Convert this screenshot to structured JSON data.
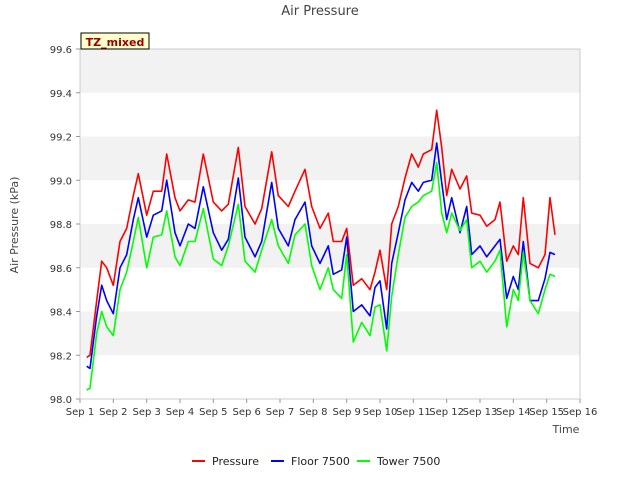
{
  "chart_data": {
    "type": "line",
    "title": "Air Pressure",
    "xlabel": "Time",
    "ylabel": "Air Pressure (kPa)",
    "site_tag": "TZ_mixed",
    "ylim": [
      98.0,
      99.6
    ],
    "yticks": [
      "98.0",
      "98.2",
      "98.4",
      "98.6",
      "98.8",
      "99.0",
      "99.2",
      "99.4",
      "99.6"
    ],
    "xlim": [
      "Sep 1",
      "Sep 16"
    ],
    "xticks": [
      "Sep 1",
      "Sep 2",
      "Sep 3",
      "Sep 4",
      "Sep 5",
      "Sep 6",
      "Sep 7",
      "Sep 8",
      "Sep 9",
      "Sep 10",
      "Sep 11",
      "Sep 12",
      "Sep 13",
      "Sep 14",
      "Sep 15",
      "Sep 16"
    ],
    "grid": "horizontal bands",
    "legend_position": "bottom",
    "series": [
      {
        "name": "Pressure",
        "color": "#ff0000",
        "x": [
          1.2,
          1.3,
          1.5,
          1.65,
          1.8,
          2.0,
          2.2,
          2.4,
          2.6,
          2.75,
          3.0,
          3.2,
          3.45,
          3.6,
          3.85,
          4.0,
          4.25,
          4.45,
          4.7,
          5.0,
          5.25,
          5.45,
          5.75,
          5.95,
          6.25,
          6.45,
          6.75,
          6.95,
          7.25,
          7.45,
          7.75,
          7.95,
          8.2,
          8.45,
          8.6,
          8.85,
          9.0,
          9.2,
          9.45,
          9.7,
          9.85,
          10.0,
          10.2,
          10.35,
          10.55,
          10.75,
          10.95,
          11.15,
          11.3,
          11.55,
          11.7,
          11.85,
          12.0,
          12.15,
          12.4,
          12.6,
          12.75,
          13.0,
          13.2,
          13.45,
          13.6,
          13.8,
          14.0,
          14.15,
          14.3,
          14.5,
          14.75,
          14.95,
          15.1,
          15.25
        ],
        "values": [
          98.19,
          98.2,
          98.45,
          98.63,
          98.6,
          98.52,
          98.72,
          98.78,
          98.93,
          99.03,
          98.84,
          98.95,
          98.95,
          99.12,
          98.92,
          98.86,
          98.91,
          98.9,
          99.12,
          98.9,
          98.86,
          98.89,
          99.15,
          98.88,
          98.8,
          98.87,
          99.13,
          98.93,
          98.88,
          98.95,
          99.05,
          98.88,
          98.78,
          98.85,
          98.72,
          98.72,
          98.78,
          98.52,
          98.55,
          98.5,
          98.58,
          98.68,
          98.5,
          98.8,
          98.88,
          99.01,
          99.12,
          99.06,
          99.12,
          99.14,
          99.32,
          99.15,
          98.93,
          99.05,
          98.96,
          99.02,
          98.85,
          98.84,
          98.79,
          98.82,
          98.9,
          98.63,
          98.7,
          98.66,
          98.92,
          98.62,
          98.6,
          98.66,
          98.92,
          98.75
        ]
      },
      {
        "name": "Floor 7500",
        "color": "#0000ff",
        "x": [
          1.2,
          1.3,
          1.5,
          1.65,
          1.8,
          2.0,
          2.2,
          2.4,
          2.6,
          2.75,
          3.0,
          3.2,
          3.45,
          3.6,
          3.85,
          4.0,
          4.25,
          4.45,
          4.7,
          5.0,
          5.25,
          5.45,
          5.75,
          5.95,
          6.25,
          6.45,
          6.75,
          6.95,
          7.25,
          7.45,
          7.75,
          7.95,
          8.2,
          8.45,
          8.6,
          8.85,
          9.0,
          9.2,
          9.45,
          9.7,
          9.85,
          10.0,
          10.2,
          10.35,
          10.55,
          10.75,
          10.95,
          11.15,
          11.3,
          11.55,
          11.7,
          11.85,
          12.0,
          12.15,
          12.4,
          12.6,
          12.75,
          13.0,
          13.2,
          13.45,
          13.6,
          13.8,
          14.0,
          14.15,
          14.3,
          14.5,
          14.75,
          14.95,
          15.1,
          15.25
        ],
        "values": [
          98.15,
          98.14,
          98.38,
          98.52,
          98.45,
          98.39,
          98.6,
          98.66,
          98.82,
          98.92,
          98.74,
          98.84,
          98.86,
          99.0,
          98.76,
          98.7,
          98.8,
          98.78,
          98.97,
          98.76,
          98.68,
          98.73,
          99.01,
          98.74,
          98.65,
          98.72,
          98.99,
          98.78,
          98.7,
          98.82,
          98.9,
          98.7,
          98.62,
          98.7,
          98.57,
          98.59,
          98.74,
          98.4,
          98.43,
          98.38,
          98.51,
          98.54,
          98.32,
          98.62,
          98.76,
          98.91,
          98.99,
          98.95,
          98.99,
          99.0,
          99.17,
          98.99,
          98.82,
          98.92,
          98.76,
          98.88,
          98.66,
          98.7,
          98.65,
          98.7,
          98.73,
          98.46,
          98.56,
          98.5,
          98.72,
          98.45,
          98.45,
          98.55,
          98.67,
          98.66
        ]
      },
      {
        "name": "Tower 7500",
        "color": "#00ff00",
        "x": [
          1.2,
          1.3,
          1.5,
          1.65,
          1.8,
          2.0,
          2.2,
          2.4,
          2.6,
          2.75,
          3.0,
          3.2,
          3.45,
          3.6,
          3.85,
          4.0,
          4.25,
          4.45,
          4.7,
          5.0,
          5.25,
          5.45,
          5.75,
          5.95,
          6.25,
          6.45,
          6.75,
          6.95,
          7.25,
          7.45,
          7.75,
          7.95,
          8.2,
          8.45,
          8.6,
          8.85,
          9.0,
          9.2,
          9.45,
          9.7,
          9.85,
          10.0,
          10.2,
          10.35,
          10.55,
          10.75,
          10.95,
          11.15,
          11.3,
          11.55,
          11.7,
          11.85,
          12.0,
          12.15,
          12.4,
          12.6,
          12.75,
          13.0,
          13.2,
          13.45,
          13.6,
          13.8,
          14.0,
          14.15,
          14.3,
          14.5,
          14.75,
          14.95,
          15.1,
          15.25
        ],
        "values": [
          98.04,
          98.05,
          98.3,
          98.4,
          98.33,
          98.29,
          98.5,
          98.58,
          98.72,
          98.83,
          98.6,
          98.74,
          98.75,
          98.86,
          98.65,
          98.61,
          98.72,
          98.72,
          98.87,
          98.64,
          98.61,
          98.7,
          98.89,
          98.63,
          98.58,
          98.68,
          98.82,
          98.7,
          98.62,
          98.75,
          98.8,
          98.61,
          98.5,
          98.6,
          98.5,
          98.46,
          98.66,
          98.26,
          98.35,
          98.29,
          98.42,
          98.43,
          98.22,
          98.47,
          98.66,
          98.83,
          98.88,
          98.9,
          98.93,
          98.95,
          99.08,
          98.85,
          98.76,
          98.85,
          98.77,
          98.82,
          98.6,
          98.63,
          98.58,
          98.63,
          98.68,
          98.33,
          98.5,
          98.45,
          98.67,
          98.45,
          98.39,
          98.5,
          98.57,
          98.56
        ]
      }
    ]
  }
}
